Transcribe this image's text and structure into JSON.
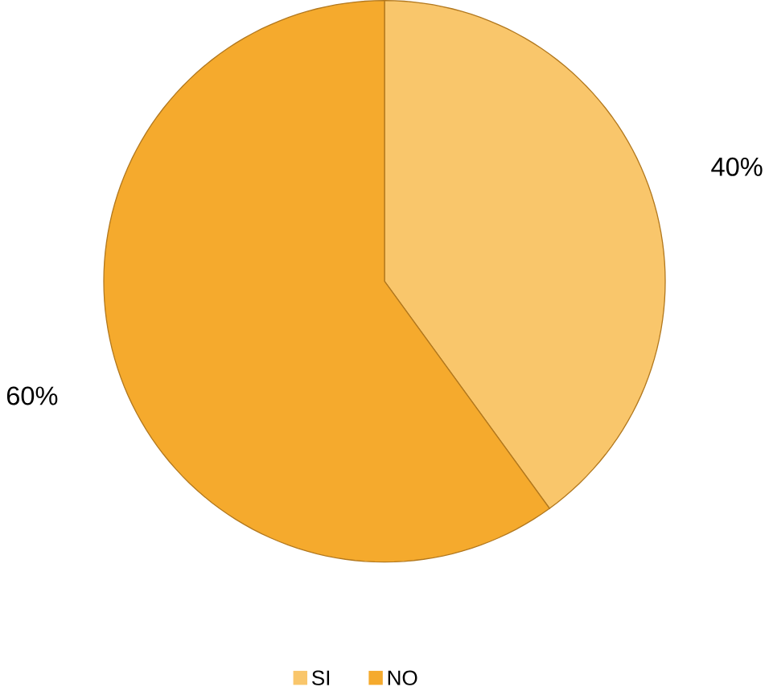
{
  "chart_data": {
    "type": "pie",
    "categories": [
      "SI",
      "NO"
    ],
    "values": [
      40,
      60
    ],
    "colors": [
      "#f9c66b",
      "#f5aa2d"
    ],
    "value_labels": [
      "40%",
      "60%"
    ],
    "legend": "bottom"
  }
}
